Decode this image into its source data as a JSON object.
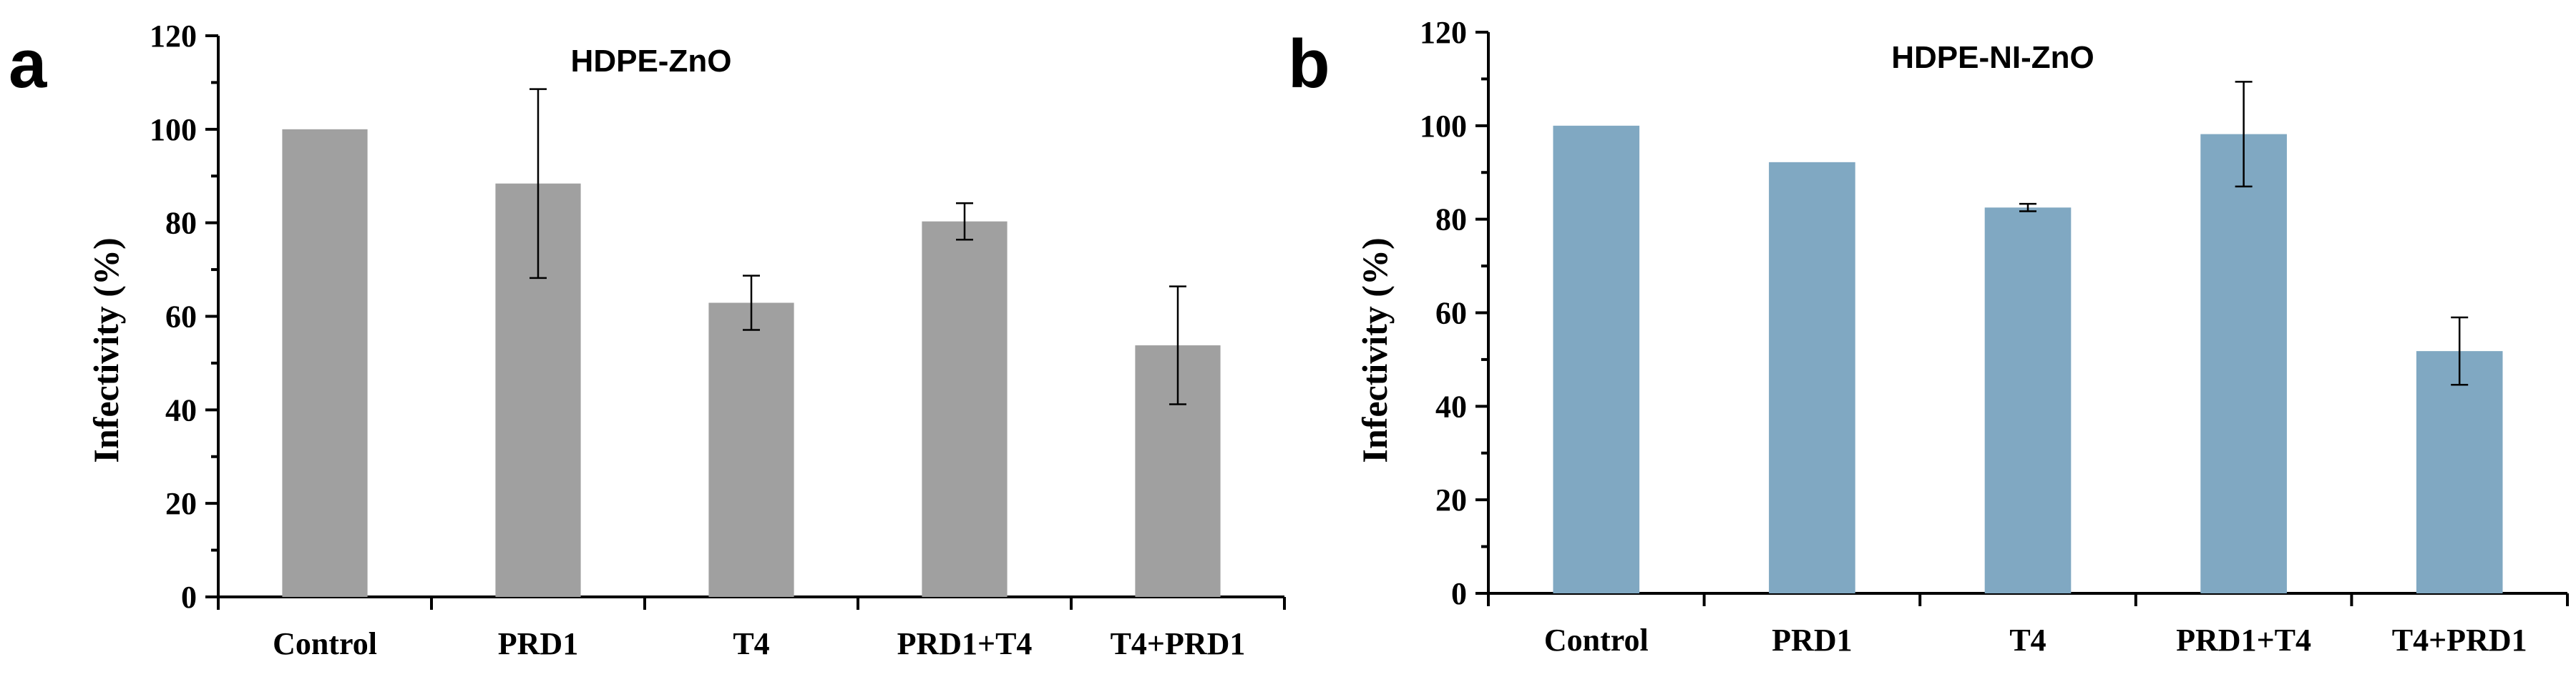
{
  "chart_data": [
    {
      "type": "bar",
      "panel_label": "a",
      "title": "HDPE-ZnO",
      "categories": [
        "Control",
        "PRD1",
        "T4",
        "PRD1+T4",
        "T4+PRD1"
      ],
      "values": [
        100,
        88.4,
        62.9,
        80.3,
        53.8
      ],
      "errors": [
        0,
        20.2,
        5.8,
        3.9,
        12.6
      ],
      "ylabel": "Infectivity (%)",
      "xlabel": "",
      "ylim": [
        0,
        120
      ],
      "yticks": [
        0,
        20,
        40,
        60,
        80,
        100,
        120
      ],
      "bar_color": "#a0a0a0",
      "grid": false
    },
    {
      "type": "bar",
      "panel_label": "b",
      "title": "HDPE-NI-ZnO",
      "categories": [
        "Control",
        "PRD1",
        "T4",
        "PRD1+T4",
        "T4+PRD1"
      ],
      "values": [
        100,
        92.2,
        82.5,
        98.2,
        51.8
      ],
      "errors": [
        0,
        0,
        0.8,
        11.2,
        7.2
      ],
      "ylabel": "Infectivity (%)",
      "xlabel": "",
      "ylim": [
        0,
        120
      ],
      "yticks": [
        0,
        20,
        40,
        60,
        80,
        100,
        120
      ],
      "bar_color": "#80a8c2",
      "grid": false
    }
  ]
}
